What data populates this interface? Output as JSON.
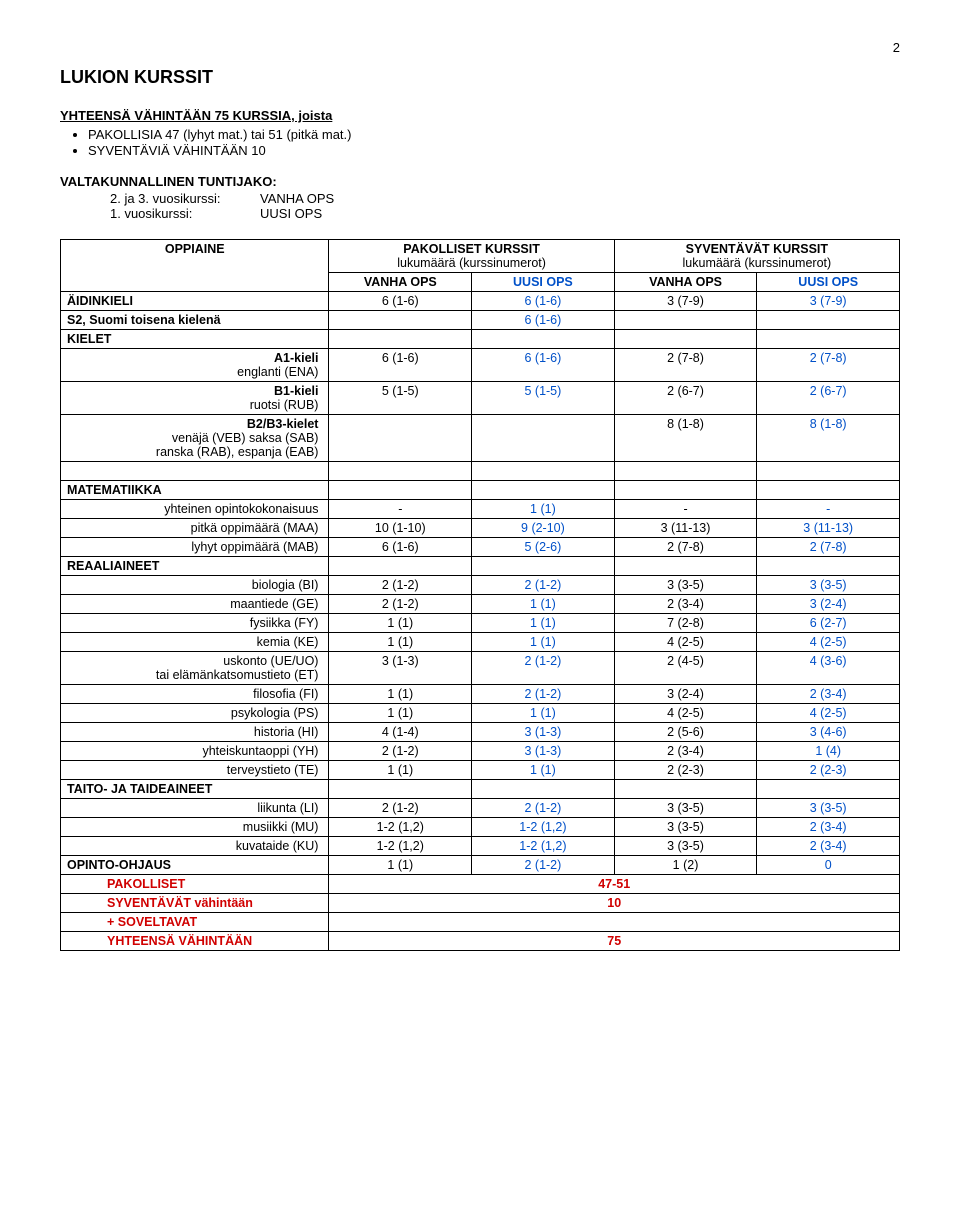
{
  "page_number": "2",
  "title": "LUKION KURSSIT",
  "intro": {
    "line": "YHTEENSÄ VÄHINTÄÄN 75 KURSSIA, joista",
    "bullet1": "PAKOLLISIA 47 (lyhyt mat.) tai 51 (pitkä mat.)",
    "bullet2": "SYVENTÄVIÄ VÄHINTÄÄN 10"
  },
  "tuntijako": {
    "heading": "VALTAKUNNALLINEN TUNTIJAKO:",
    "row1_k": "2. ja 3. vuosikurssi:",
    "row1_v": "VANHA OPS",
    "row2_k": "1. vuosikurssi:",
    "row2_v": "UUSI OPS"
  },
  "table": {
    "headers": {
      "oppiaine": "OPPIAINE",
      "pakolliset": "PAKOLLISET KURSSIT",
      "pakolliset_sub": "lukumäärä (kurssinumerot)",
      "syventavat": "SYVENTÄVÄT KURSSIT",
      "syventavat_sub": "lukumäärä (kurssinumerot)",
      "vanha": "VANHA OPS",
      "uusi": "UUSI OPS"
    },
    "rows": [
      {
        "label": "ÄIDINKIELI",
        "class": "bold",
        "v": [
          "6 (1-6)",
          "6 (1-6)",
          "3 (7-9)",
          "3 (7-9)"
        ]
      },
      {
        "label": "S2, Suomi toisena kielenä",
        "class": "bold",
        "v": [
          "",
          "6 (1-6)",
          "",
          ""
        ]
      },
      {
        "label": "KIELET",
        "class": "bold",
        "v": [
          "",
          "",
          "",
          ""
        ]
      },
      {
        "label": "A1-kieli\nenglanti (ENA)",
        "align": "right",
        "class": "bold-first",
        "v": [
          "6 (1-6)",
          "6 (1-6)",
          "2 (7-8)",
          "2 (7-8)"
        ]
      },
      {
        "label": "B1-kieli\nruotsi (RUB)",
        "align": "right",
        "class": "bold-first",
        "v": [
          "5 (1-5)",
          "5 (1-5)",
          "2 (6-7)",
          "2 (6-7)"
        ]
      },
      {
        "label": "B2/B3-kielet\nvenäjä (VEB) saksa (SAB)\nranska (RAB), espanja (EAB)",
        "align": "right",
        "class": "bold-first",
        "v": [
          "",
          "",
          "8 (1-8)",
          "8 (1-8)"
        ]
      },
      {
        "label": "",
        "v": [
          "",
          "",
          "",
          ""
        ]
      },
      {
        "label": "MATEMATIIKKA",
        "class": "bold",
        "v": [
          "",
          "",
          "",
          ""
        ]
      },
      {
        "label": "yhteinen opintokokonaisuus",
        "align": "right",
        "v": [
          "-",
          "1 (1)",
          "-",
          "-"
        ]
      },
      {
        "label": "pitkä oppimäärä (MAA)",
        "align": "right",
        "v": [
          "10 (1-10)",
          "9 (2-10)",
          "3 (11-13)",
          "3 (11-13)"
        ]
      },
      {
        "label": "lyhyt oppimäärä (MAB)",
        "align": "right",
        "v": [
          "6 (1-6)",
          "5 (2-6)",
          "2 (7-8)",
          "2 (7-8)"
        ]
      },
      {
        "label": "REAALIAINEET",
        "class": "bold",
        "v": [
          "",
          "",
          "",
          ""
        ]
      },
      {
        "label": "biologia (BI)",
        "align": "right",
        "v": [
          "2 (1-2)",
          "2 (1-2)",
          "3 (3-5)",
          "3 (3-5)"
        ]
      },
      {
        "label": "maantiede (GE)",
        "align": "right",
        "v": [
          "2 (1-2)",
          "1 (1)",
          "2 (3-4)",
          "3 (2-4)"
        ]
      },
      {
        "label": "fysiikka (FY)",
        "align": "right",
        "v": [
          "1 (1)",
          "1 (1)",
          "7 (2-8)",
          "6 (2-7)"
        ]
      },
      {
        "label": "kemia (KE)",
        "align": "right",
        "v": [
          "1 (1)",
          "1 (1)",
          "4 (2-5)",
          "4 (2-5)"
        ]
      },
      {
        "label": "uskonto (UE/UO)\ntai elämänkatsomustieto (ET)",
        "align": "right",
        "v": [
          "3 (1-3)",
          "2 (1-2)",
          "2 (4-5)",
          "4 (3-6)"
        ]
      },
      {
        "label": "filosofia (FI)",
        "align": "right",
        "v": [
          "1 (1)",
          "2 (1-2)",
          "3 (2-4)",
          "2 (3-4)"
        ]
      },
      {
        "label": "psykologia (PS)",
        "align": "right",
        "v": [
          "1 (1)",
          "1 (1)",
          "4 (2-5)",
          "4 (2-5)"
        ]
      },
      {
        "label": "historia (HI)",
        "align": "right",
        "v": [
          "4 (1-4)",
          "3 (1-3)",
          "2 (5-6)",
          "3 (4-6)"
        ]
      },
      {
        "label": "yhteiskuntaoppi (YH)",
        "align": "right",
        "v": [
          "2 (1-2)",
          "3 (1-3)",
          "2 (3-4)",
          "1 (4)"
        ]
      },
      {
        "label": "terveystieto (TE)",
        "align": "right",
        "v": [
          "1 (1)",
          "1 (1)",
          "2 (2-3)",
          "2 (2-3)"
        ]
      },
      {
        "label": "TAITO- JA TAIDEAINEET",
        "class": "bold",
        "v": [
          "",
          "",
          "",
          ""
        ]
      },
      {
        "label": "liikunta (LI)",
        "align": "right",
        "v": [
          "2 (1-2)",
          "2 (1-2)",
          "3 (3-5)",
          "3 (3-5)"
        ]
      },
      {
        "label": "musiikki (MU)",
        "align": "right",
        "v": [
          "1-2 (1,2)",
          "1-2 (1,2)",
          "3 (3-5)",
          "2 (3-4)"
        ]
      },
      {
        "label": "kuvataide (KU)",
        "align": "right",
        "v": [
          "1-2 (1,2)",
          "1-2 (1,2)",
          "3 (3-5)",
          "2 (3-4)"
        ]
      },
      {
        "label": "OPINTO-OHJAUS",
        "class": "bold",
        "v": [
          "1 (1)",
          "2 (1-2)",
          "1 (2)",
          "0"
        ]
      }
    ],
    "summary": [
      {
        "label": "PAKOLLISET",
        "class": "red",
        "span": "47-51"
      },
      {
        "label": "SYVENTÄVÄT vähintään",
        "class": "red",
        "span": "10"
      },
      {
        "label": "+ SOVELTAVAT",
        "class": "red",
        "span": ""
      },
      {
        "label": "YHTEENSÄ VÄHINTÄÄN",
        "class": "red",
        "span": "75"
      }
    ]
  }
}
